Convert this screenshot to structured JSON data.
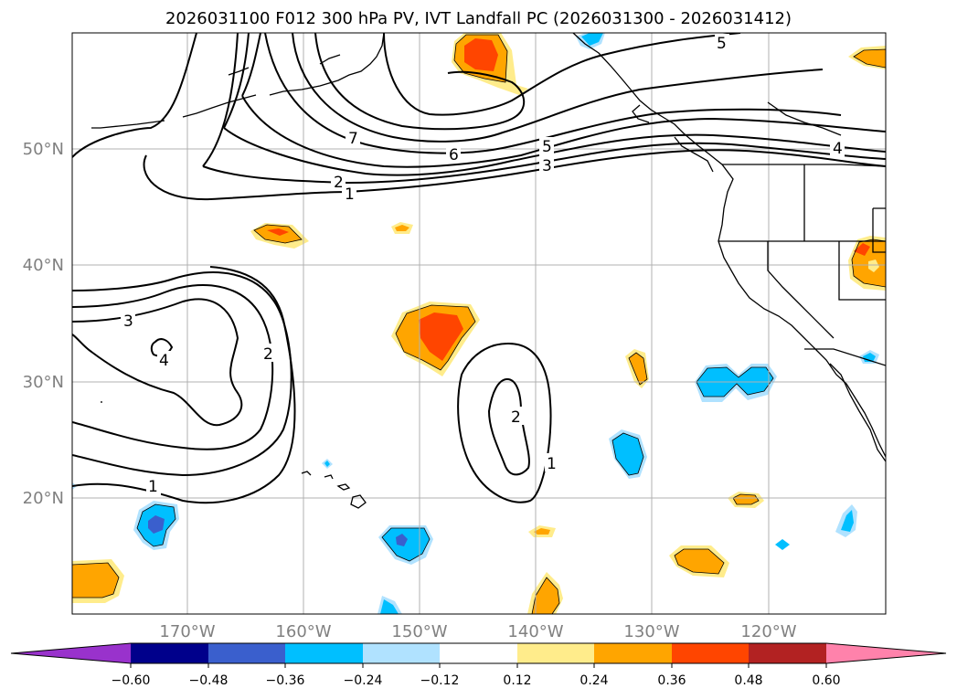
{
  "title": "2026031100 F012 300 hPa PV, IVT Landfall PC (2026031300 - 2026031412)",
  "lon_ticks": [
    "170°W",
    "160°W",
    "150°W",
    "140°W",
    "130°W",
    "120°W"
  ],
  "lat_ticks": [
    "50°N",
    "40°N",
    "30°N",
    "20°N"
  ],
  "colorbar": {
    "ticks": [
      "−0.60",
      "−0.48",
      "−0.36",
      "−0.24",
      "−0.12",
      "0.12",
      "0.24",
      "0.36",
      "0.48",
      "0.60"
    ],
    "colors": [
      "#9932CC",
      "#00008B",
      "#3A5FCD",
      "#00BFFF",
      "#B0E2FF",
      "#FFFFFF",
      "#FFEC8B",
      "#FFA500",
      "#FF4500",
      "#B22222",
      "#FF82AB"
    ]
  },
  "contour_labels": [
    "7",
    "6",
    "5",
    "3",
    "2",
    "1",
    "5",
    "4",
    "3",
    "4",
    "2",
    "2",
    "1",
    "1"
  ],
  "colors": {
    "coast": "#000000",
    "grid": "#b0b0b0"
  }
}
